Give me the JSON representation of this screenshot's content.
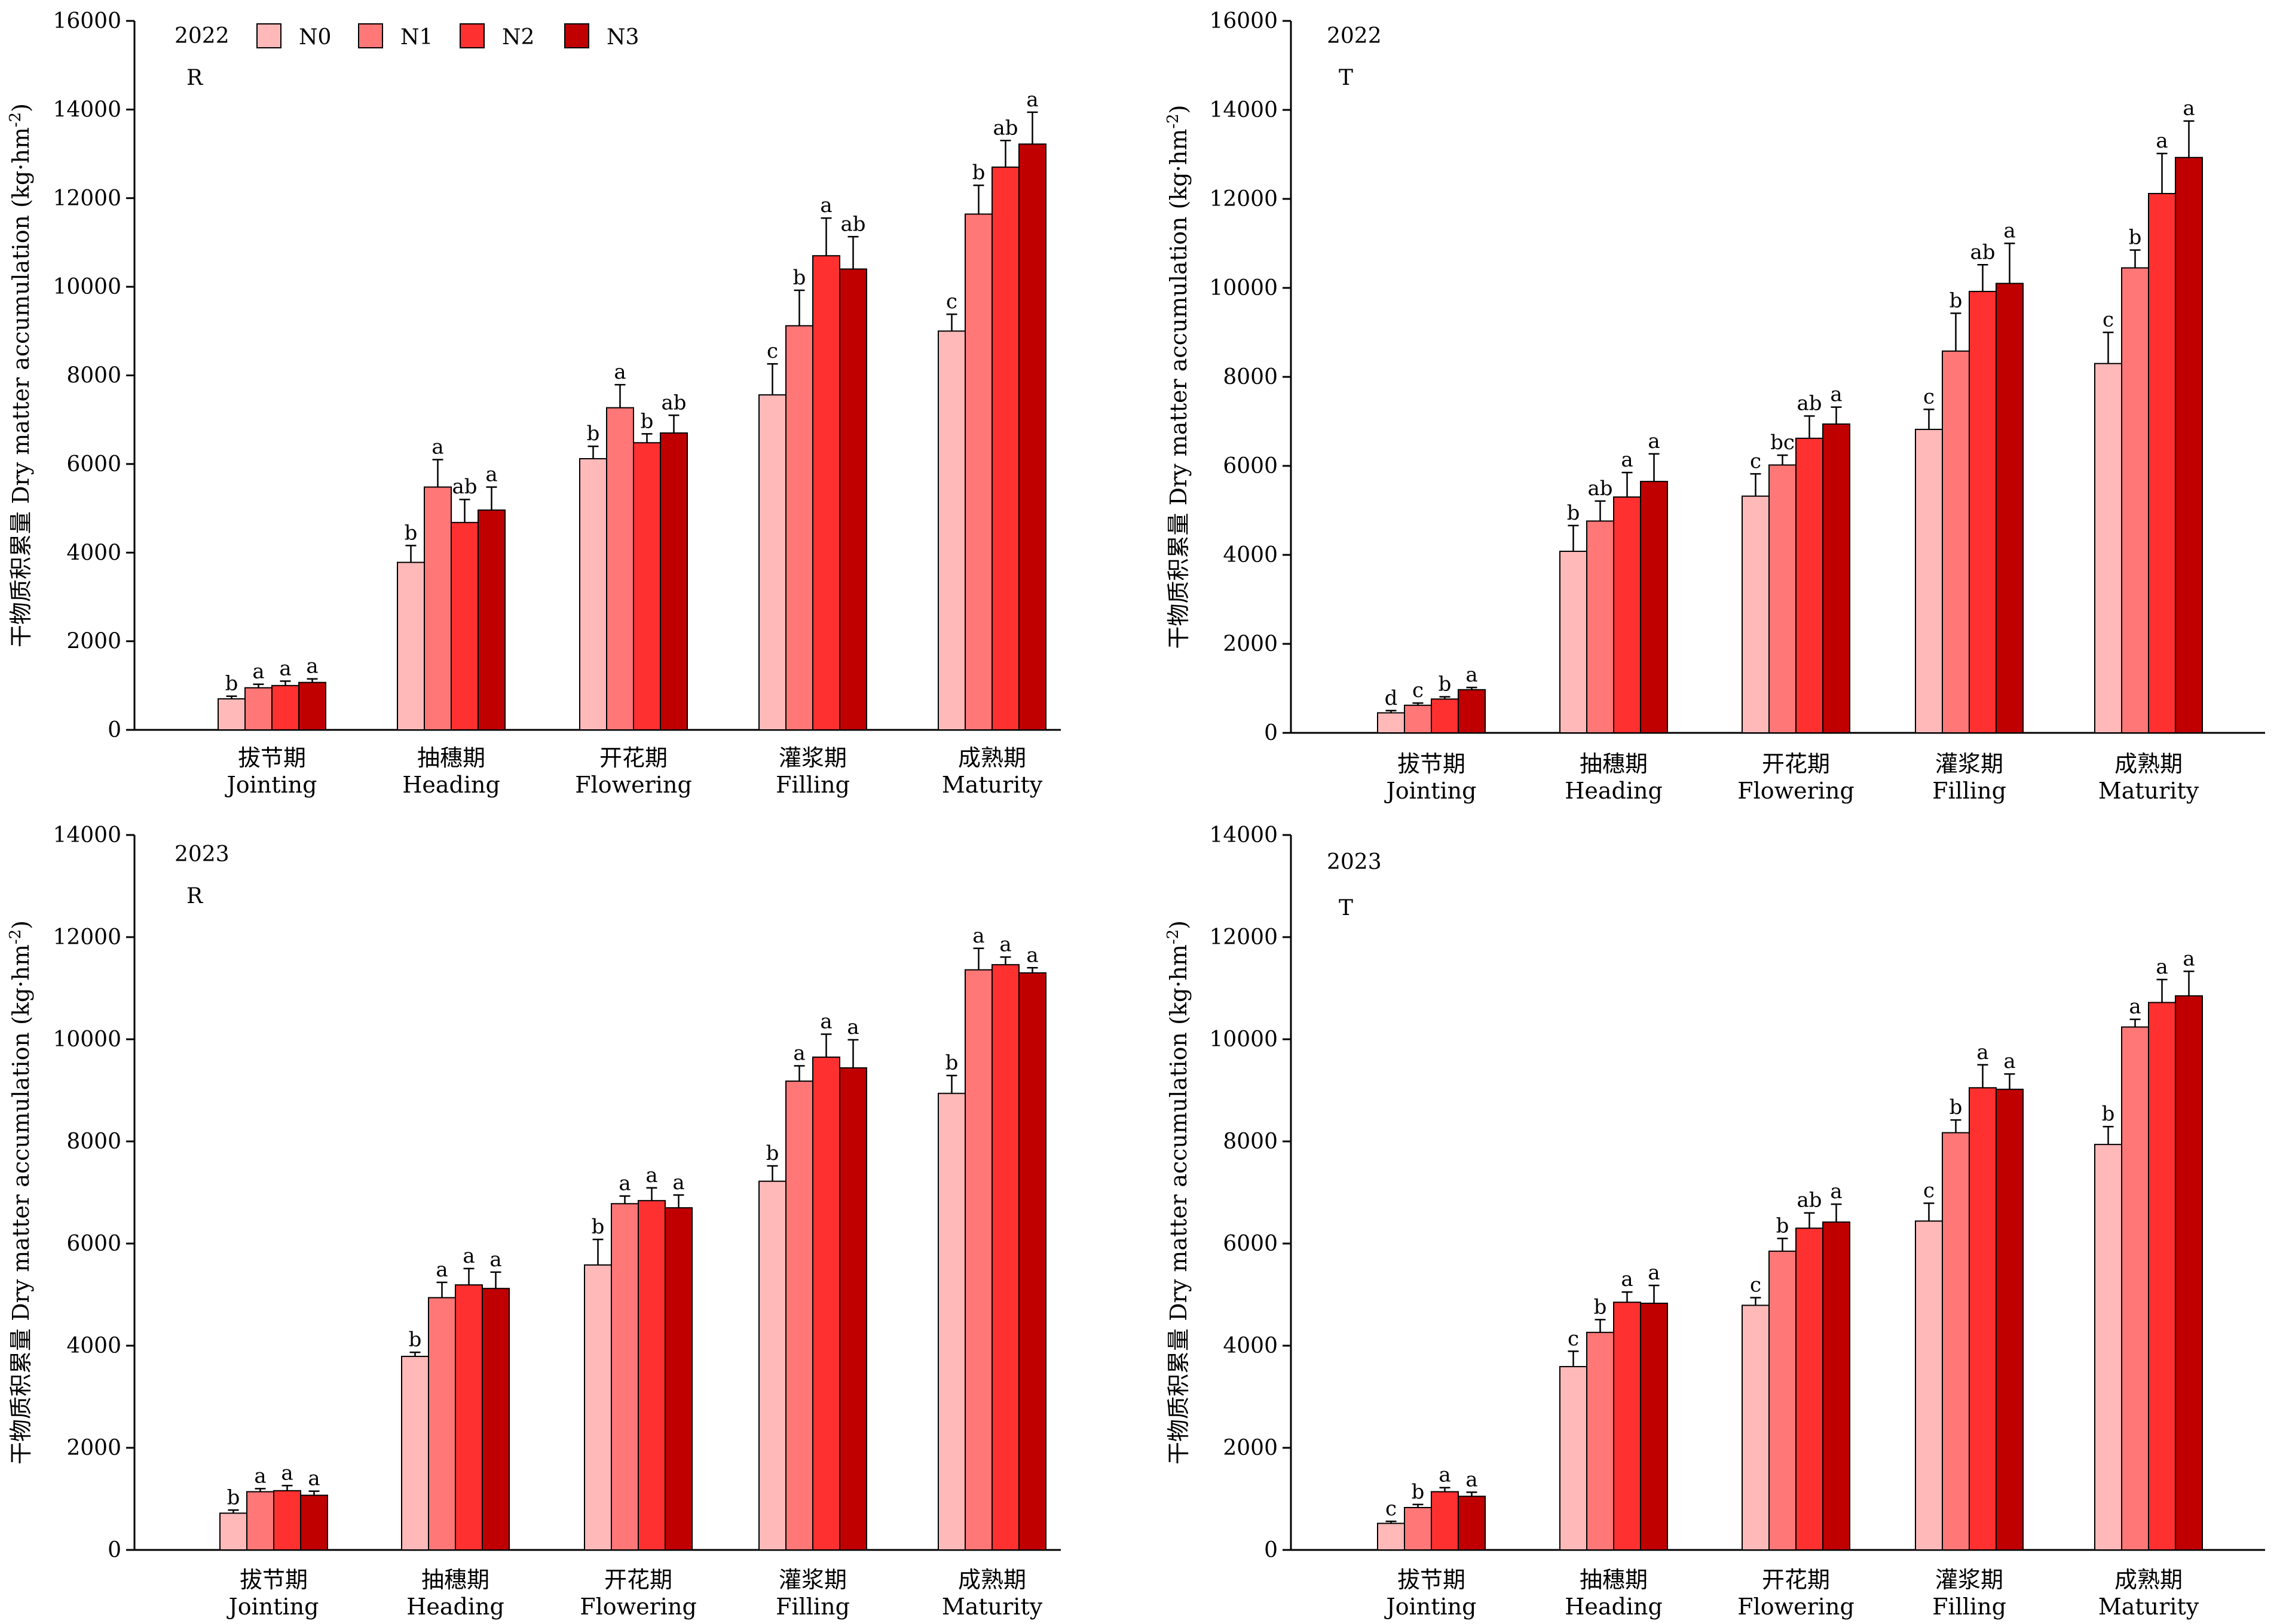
{
  "legend": [
    {
      "label": "N0",
      "color": "#FFB9B9"
    },
    {
      "label": "N1",
      "color": "#FF7777"
    },
    {
      "label": "N2",
      "color": "#FF3030"
    },
    {
      "label": "N3",
      "color": "#C00000"
    }
  ],
  "chart_data": [
    {
      "type": "bar",
      "year": "2022",
      "panel_label": "R",
      "ylabel": "干物质积累量 Dry matter accumulation (kg·hm-2)",
      "ylabel_main": "干物质积累量 Dry matter accumulation (kg·hm",
      "ylabel_sup": "-2",
      "ylabel_end": ")",
      "ylim": [
        0,
        16000
      ],
      "yticks": [
        "0",
        "2000",
        "4000",
        "6000",
        "8000",
        "10000",
        "12000",
        "14000",
        "16000"
      ],
      "categories_cn": [
        "拔节期",
        "抽穗期",
        "开花期",
        "灌浆期",
        "成熟期"
      ],
      "categories_en": [
        "Jointing",
        "Heading",
        "Flowering",
        "Filling",
        "Maturity"
      ],
      "series": [
        {
          "name": "N0",
          "values": [
            700,
            3780,
            6120,
            7560,
            9000
          ],
          "errors": [
            60,
            380,
            280,
            700,
            380
          ],
          "letters": [
            "b",
            "b",
            "b",
            "c",
            "c"
          ]
        },
        {
          "name": "N1",
          "values": [
            950,
            5480,
            7270,
            9120,
            11640
          ],
          "errors": [
            80,
            620,
            520,
            800,
            650
          ],
          "letters": [
            "a",
            "a",
            "a",
            "b",
            "b"
          ]
        },
        {
          "name": "N2",
          "values": [
            1000,
            4680,
            6480,
            10700,
            12700
          ],
          "errors": [
            100,
            520,
            200,
            850,
            600
          ],
          "letters": [
            "a",
            "ab",
            "b",
            "a",
            "ab"
          ]
        },
        {
          "name": "N3",
          "values": [
            1070,
            4960,
            6700,
            10400,
            13220
          ],
          "errors": [
            80,
            520,
            400,
            730,
            720
          ],
          "letters": [
            "a",
            "a",
            "ab",
            "ab",
            "a"
          ]
        }
      ]
    },
    {
      "type": "bar",
      "year": "2022",
      "panel_label": "T",
      "ylabel": "干物质积累量 Dry matter accumulation (kg·hm-2)",
      "ylabel_main": "干物质积累量 Dry matter accumulation (kg·hm",
      "ylabel_sup": "-2",
      "ylabel_end": ")",
      "ylim": [
        0,
        16000
      ],
      "yticks": [
        "0",
        "2000",
        "4000",
        "6000",
        "8000",
        "10000",
        "12000",
        "14000",
        "16000"
      ],
      "categories_cn": [
        "拔节期",
        "抽穗期",
        "开花期",
        "灌浆期",
        "成熟期"
      ],
      "categories_en": [
        "Jointing",
        "Heading",
        "Flowering",
        "Filling",
        "Maturity"
      ],
      "series": [
        {
          "name": "N0",
          "values": [
            450,
            4080,
            5320,
            6820,
            8300
          ],
          "errors": [
            50,
            580,
            500,
            450,
            700
          ],
          "letters": [
            "d",
            "b",
            "c",
            "c",
            "c"
          ]
        },
        {
          "name": "N1",
          "values": [
            620,
            4760,
            6020,
            8580,
            10450
          ],
          "errors": [
            50,
            450,
            220,
            850,
            400
          ],
          "letters": [
            "c",
            "ab",
            "bc",
            "b",
            "b"
          ]
        },
        {
          "name": "N2",
          "values": [
            760,
            5300,
            6620,
            9920,
            12120
          ],
          "errors": [
            50,
            550,
            500,
            600,
            900
          ],
          "letters": [
            "b",
            "a",
            "ab",
            "ab",
            "a"
          ]
        },
        {
          "name": "N3",
          "values": [
            970,
            5650,
            6940,
            10100,
            12930
          ],
          "errors": [
            50,
            620,
            380,
            900,
            820
          ],
          "letters": [
            "a",
            "a",
            "a",
            "a",
            "a"
          ]
        }
      ]
    },
    {
      "type": "bar",
      "year": "2023",
      "panel_label": "R",
      "ylabel": "干物质积累量 Dry matter accumulation (kg·hm-2)",
      "ylabel_main": "干物质积累量 Dry matter accumulation (kg·hm",
      "ylabel_sup": "-2",
      "ylabel_end": ")",
      "ylim": [
        0,
        14000
      ],
      "yticks": [
        "0",
        "2000",
        "4000",
        "6000",
        "8000",
        "10000",
        "12000",
        "14000"
      ],
      "categories_cn": [
        "拔节期",
        "抽穗期",
        "开花期",
        "灌浆期",
        "成熟期"
      ],
      "categories_en": [
        "Jointing",
        "Heading",
        "Flowering",
        "Filling",
        "Maturity"
      ],
      "series": [
        {
          "name": "N0",
          "values": [
            720,
            3790,
            5580,
            7220,
            8940
          ],
          "errors": [
            60,
            80,
            500,
            300,
            350
          ],
          "letters": [
            "b",
            "b",
            "b",
            "b",
            "b"
          ]
        },
        {
          "name": "N1",
          "values": [
            1140,
            4940,
            6780,
            9180,
            11360
          ],
          "errors": [
            60,
            300,
            150,
            300,
            420
          ],
          "letters": [
            "a",
            "a",
            "a",
            "a",
            "a"
          ]
        },
        {
          "name": "N2",
          "values": [
            1160,
            5190,
            6840,
            9650,
            11460
          ],
          "errors": [
            100,
            320,
            250,
            450,
            150
          ],
          "letters": [
            "a",
            "a",
            "a",
            "a",
            "a"
          ]
        },
        {
          "name": "N3",
          "values": [
            1070,
            5120,
            6700,
            9440,
            11300
          ],
          "errors": [
            80,
            320,
            250,
            550,
            100
          ],
          "letters": [
            "a",
            "a",
            "a",
            "a",
            "a"
          ]
        }
      ]
    },
    {
      "type": "bar",
      "year": "2023",
      "panel_label": "T",
      "ylabel": "干物质积累量 Dry matter accumulation (kg·hm-2)",
      "ylabel_main": "干物质积累量 Dry matter accumulation (kg·hm",
      "ylabel_sup": "-2",
      "ylabel_end": ")",
      "ylim": [
        0,
        14000
      ],
      "yticks": [
        "0",
        "2000",
        "4000",
        "6000",
        "8000",
        "10000",
        "12000",
        "14000"
      ],
      "categories_cn": [
        "拔节期",
        "抽穗期",
        "开花期",
        "灌浆期",
        "成熟期"
      ],
      "categories_en": [
        "Jointing",
        "Heading",
        "Flowering",
        "Filling",
        "Maturity"
      ],
      "series": [
        {
          "name": "N0",
          "values": [
            520,
            3590,
            4790,
            6440,
            7940
          ],
          "errors": [
            40,
            300,
            150,
            350,
            350
          ],
          "letters": [
            "c",
            "c",
            "c",
            "c",
            "b"
          ]
        },
        {
          "name": "N1",
          "values": [
            830,
            4260,
            5850,
            8170,
            10240
          ],
          "errors": [
            60,
            250,
            250,
            250,
            150
          ],
          "letters": [
            "b",
            "b",
            "b",
            "b",
            "a"
          ]
        },
        {
          "name": "N2",
          "values": [
            1140,
            4850,
            6300,
            9050,
            10720
          ],
          "errors": [
            80,
            200,
            300,
            450,
            450
          ],
          "letters": [
            "a",
            "a",
            "ab",
            "a",
            "a"
          ]
        },
        {
          "name": "N3",
          "values": [
            1050,
            4830,
            6420,
            9020,
            10850
          ],
          "errors": [
            80,
            350,
            350,
            300,
            480
          ],
          "letters": [
            "a",
            "a",
            "a",
            "a",
            "a"
          ]
        }
      ]
    }
  ]
}
